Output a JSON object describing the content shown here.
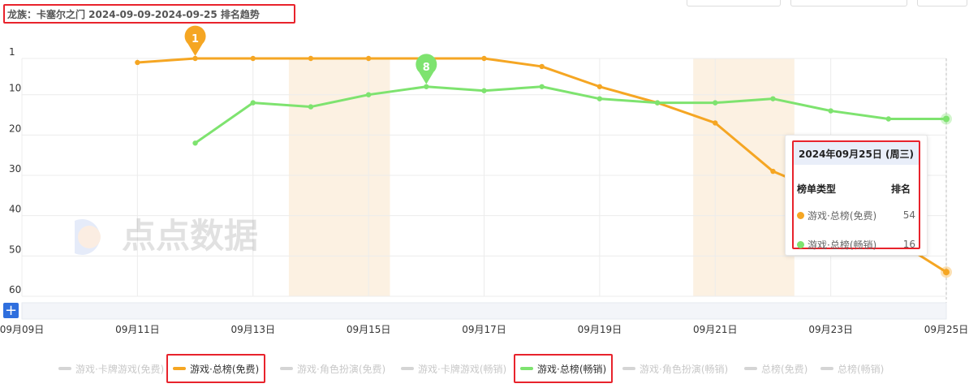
{
  "title": "龙族：卡塞尔之门 2024-09-09-2024-09-25 排名趋势",
  "watermark": "点点数据",
  "chart_data": {
    "type": "line",
    "title": "龙族：卡塞尔之门 2024-09-09-2024-09-25 排名趋势",
    "x": [
      "09月09日",
      "09月10日",
      "09月11日",
      "09月12日",
      "09月13日",
      "09月14日",
      "09月15日",
      "09月16日",
      "09月17日",
      "09月18日",
      "09月19日",
      "09月20日",
      "09月21日",
      "09月22日",
      "09月23日",
      "09月24日",
      "09月25日"
    ],
    "x_tick_labels": [
      "09月09日",
      "09月11日",
      "09月13日",
      "09月15日",
      "09月17日",
      "09月19日",
      "09月21日",
      "09月23日",
      "09月25日"
    ],
    "y_tick_labels": [
      "1",
      "10",
      "20",
      "30",
      "40",
      "50",
      "60"
    ],
    "y_ticks": [
      1,
      10,
      20,
      30,
      40,
      50,
      60
    ],
    "ylim": [
      1,
      60
    ],
    "y_inverted": true,
    "grid": true,
    "weekend_bands": [
      [
        "09月14日",
        "09月15日"
      ],
      [
        "09月21日",
        "09月22日"
      ]
    ],
    "series": [
      {
        "name": "游戏·总榜(免费)",
        "color": "#f5a623",
        "values": [
          null,
          null,
          2,
          1,
          1,
          1,
          1,
          1,
          1,
          3,
          8,
          12,
          17,
          29,
          35,
          45,
          54
        ],
        "pin": {
          "x": "09月12日",
          "label": "1"
        }
      },
      {
        "name": "游戏·总榜(畅销)",
        "color": "#7ee36f",
        "values": [
          null,
          null,
          null,
          22,
          12,
          13,
          10,
          8,
          9,
          8,
          11,
          12,
          12,
          11,
          14,
          16,
          16
        ],
        "pin": {
          "x": "09月16日",
          "label": "8"
        }
      }
    ],
    "legend": {
      "position": "bottom",
      "items": [
        {
          "name": "游戏·卡牌游戏(免费)",
          "active": false
        },
        {
          "name": "游戏·总榜(免费)",
          "active": true,
          "color": "#f5a623"
        },
        {
          "name": "游戏·角色扮演(免费)",
          "active": false
        },
        {
          "name": "游戏·卡牌游戏(畅销)",
          "active": false
        },
        {
          "name": "游戏·总榜(畅销)",
          "active": true,
          "color": "#7ee36f"
        },
        {
          "name": "游戏·角色扮演(畅销)",
          "active": false
        },
        {
          "name": "总榜(免费)",
          "active": false
        },
        {
          "name": "总榜(畅销)",
          "active": false
        }
      ]
    }
  },
  "tooltip": {
    "date": "2024年09月25日 (周三)",
    "col_type": "榜单类型",
    "col_rank": "排名",
    "rows": [
      {
        "name": "游戏·总榜(免费)",
        "value": "54",
        "color": "#f5a623"
      },
      {
        "name": "游戏·总榜(畅销)",
        "value": "16",
        "color": "#7ee36f"
      }
    ]
  },
  "zoom_button": "+"
}
